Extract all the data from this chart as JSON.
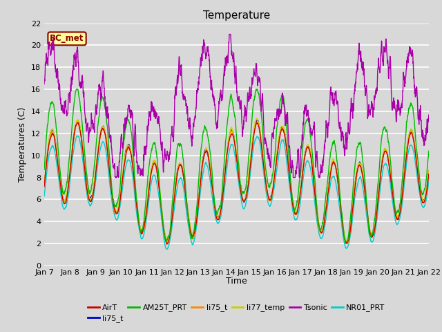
{
  "title": "Temperature",
  "ylabel": "Temperatures (C)",
  "xlabel": "Time",
  "ylim": [
    0,
    22
  ],
  "background_color": "#d8d8d8",
  "plot_bg_color": "#d8d8d8",
  "grid_color": "white",
  "annotation_text": "BC_met",
  "annotation_bg": "#ffff99",
  "annotation_border": "#8b0000",
  "annotation_text_color": "#8b0000",
  "xtick_labels": [
    "Jan 7",
    "Jan 8",
    "Jan 9",
    "Jan 10",
    "Jan 11",
    "Jan 12",
    "Jan 13",
    "Jan 14",
    "Jan 15",
    "Jan 16",
    "Jan 17",
    "Jan 18",
    "Jan 19",
    "Jan 20",
    "Jan 21",
    "Jan 22"
  ],
  "legend_entries": [
    {
      "label": "AirT",
      "color": "#cc0000"
    },
    {
      "label": "li75_t",
      "color": "#0000cc"
    },
    {
      "label": "AM25T_PRT",
      "color": "#00bb00"
    },
    {
      "label": "li75_t",
      "color": "#ff8800"
    },
    {
      "label": "li77_temp",
      "color": "#cccc00"
    },
    {
      "label": "Tsonic",
      "color": "#aa00aa"
    },
    {
      "label": "NR01_PRT",
      "color": "#00cccc"
    }
  ]
}
